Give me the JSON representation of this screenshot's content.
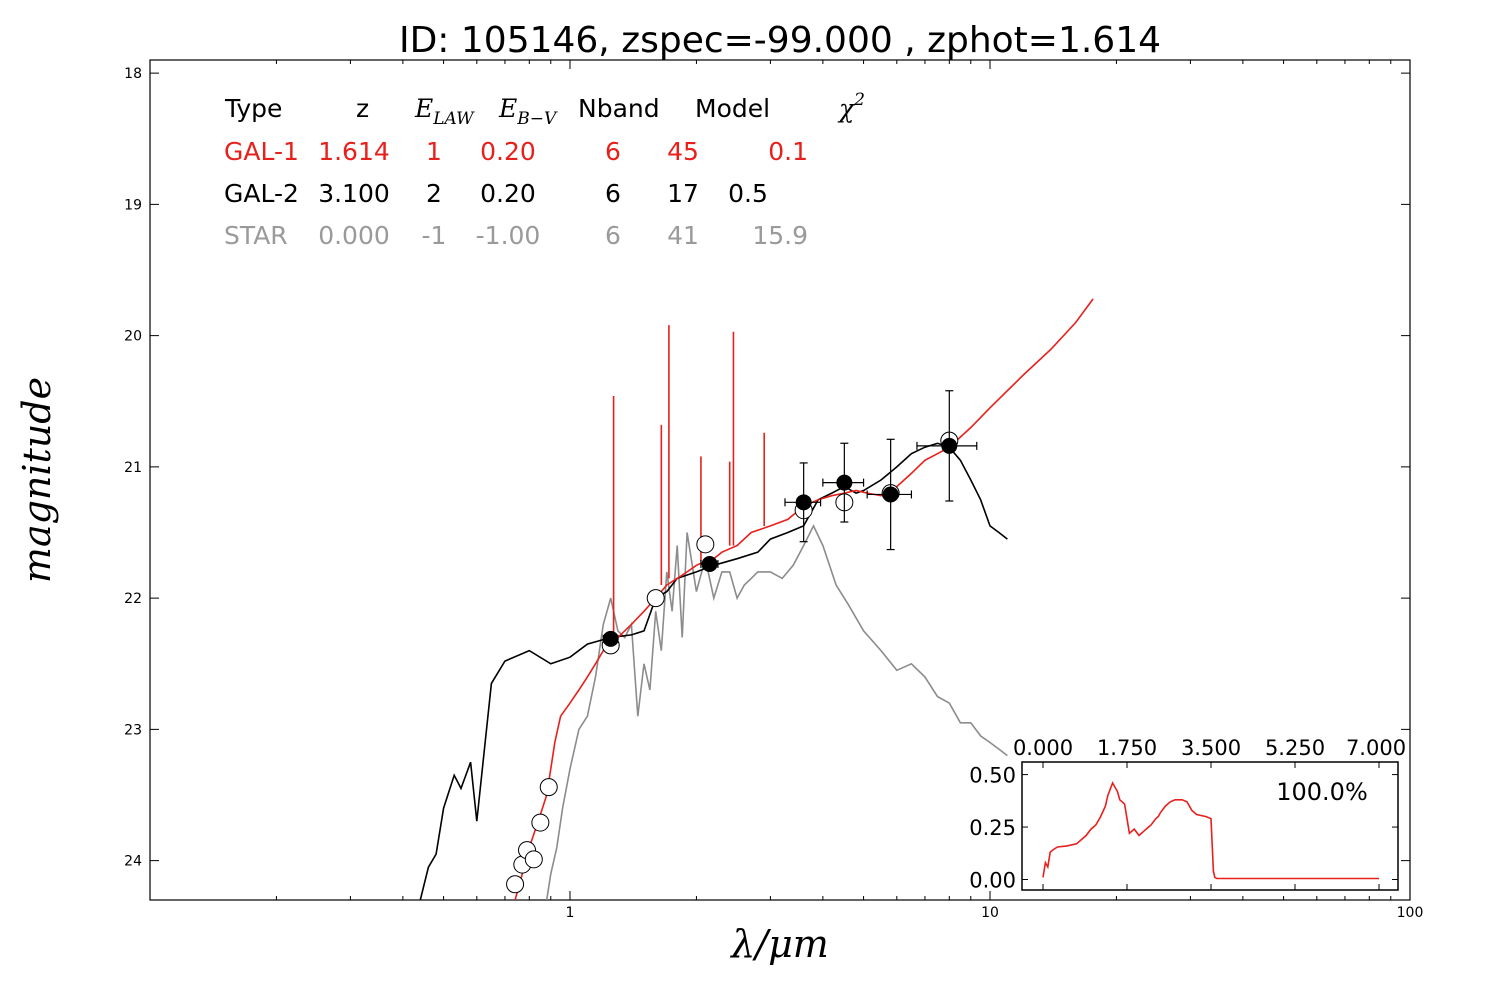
{
  "title": "ID:  105146, zspec=-99.000 , zphot=1.614",
  "colors": {
    "gal1": "#e8201c",
    "gal2": "#000000",
    "star": "#8c8c8c",
    "star_text": "#9a9a9a"
  },
  "table": {
    "headers": {
      "type": "Type",
      "z": "z",
      "elaw_base": "E",
      "elaw_sub": "LAW",
      "ebv_base": "E",
      "ebv_sub": "B−V",
      "nband": "Nband",
      "model": "Model",
      "chi2_base": "χ",
      "chi2_sup": "2"
    },
    "rows": [
      {
        "type": "GAL-1",
        "z": "1.614",
        "elaw": "1",
        "ebv": "0.20",
        "nband": "6",
        "model": "45",
        "chi2": "0.1",
        "color": "#e8201c"
      },
      {
        "type": "GAL-2",
        "z": "3.100",
        "elaw": "2",
        "ebv": "0.20",
        "nband": "6",
        "model": "17",
        "chi2": "0.5",
        "color": "#000000"
      },
      {
        "type": "STAR",
        "z": "0.000",
        "elaw": "-1",
        "ebv": "-1.00",
        "nband": "6",
        "model": "41",
        "chi2": "15.9",
        "color": "#9a9a9a"
      }
    ]
  },
  "chart_data": [
    {
      "type": "line",
      "title": "ID:  105146, zspec=-99.000 , zphot=1.614",
      "xlabel": "λ/μm",
      "ylabel": "magnitude",
      "xscale": "log",
      "xlim": [
        0.1,
        100
      ],
      "ylim": [
        24.3,
        17.9
      ],
      "yaxis_inverted": true,
      "xticks": [
        "1",
        "10",
        "100"
      ],
      "yticks": [
        "18",
        "19",
        "20",
        "21",
        "22",
        "23",
        "24"
      ],
      "grid": false,
      "series": [
        {
          "name": "GAL-1",
          "color": "#e8201c",
          "x": [
            0.74,
            0.77,
            0.8,
            0.83,
            0.86,
            0.88,
            0.9,
            0.92,
            0.95,
            1.0,
            1.05,
            1.1,
            1.15,
            1.2,
            1.25,
            1.3,
            1.35,
            1.4,
            1.5,
            1.6,
            1.7,
            1.8,
            1.9,
            2.0,
            2.1,
            2.2,
            2.3,
            2.5,
            2.7,
            3.0,
            3.3,
            3.6,
            3.9,
            4.2,
            4.5,
            4.8,
            5.1,
            5.5,
            6.0,
            6.5,
            7.0,
            7.5,
            8.0,
            9.0,
            10.0,
            12.0,
            14.0,
            16.0,
            17.6
          ],
          "y": [
            24.3,
            24.1,
            23.9,
            23.75,
            23.6,
            23.5,
            23.3,
            23.1,
            22.9,
            22.8,
            22.7,
            22.6,
            22.5,
            22.4,
            22.35,
            22.3,
            22.25,
            22.2,
            22.1,
            22.0,
            21.9,
            21.85,
            21.8,
            21.75,
            21.72,
            21.7,
            21.65,
            21.6,
            21.5,
            21.45,
            21.4,
            21.3,
            21.25,
            21.22,
            21.2,
            21.18,
            21.2,
            21.22,
            21.15,
            21.05,
            20.95,
            20.9,
            20.85,
            20.7,
            20.55,
            20.3,
            20.1,
            19.9,
            19.72
          ],
          "lines": [
            {
              "x": 1.27,
              "y": 20.46
            },
            {
              "x": 1.65,
              "y": 20.68
            },
            {
              "x": 1.72,
              "y": 19.92
            },
            {
              "x": 2.05,
              "y": 20.92
            },
            {
              "x": 2.4,
              "y": 20.96
            },
            {
              "x": 2.45,
              "y": 19.97
            },
            {
              "x": 2.9,
              "y": 20.74
            }
          ]
        },
        {
          "name": "GAL-2",
          "color": "#000000",
          "x": [
            0.44,
            0.46,
            0.48,
            0.5,
            0.53,
            0.55,
            0.58,
            0.6,
            0.65,
            0.7,
            0.8,
            0.9,
            1.0,
            1.1,
            1.25,
            1.4,
            1.5,
            1.6,
            1.7,
            1.8,
            2.0,
            2.2,
            2.5,
            2.8,
            3.0,
            3.3,
            3.6,
            3.9,
            4.2,
            4.5,
            4.8,
            5.0,
            5.5,
            6.0,
            6.5,
            7.0,
            7.5,
            8.0,
            8.5,
            9.0,
            9.5,
            10.0,
            10.5,
            11.0
          ],
          "y": [
            24.3,
            24.05,
            23.95,
            23.6,
            23.35,
            23.45,
            23.25,
            23.7,
            22.65,
            22.48,
            22.4,
            22.5,
            22.45,
            22.35,
            22.3,
            22.28,
            22.25,
            22.0,
            21.95,
            21.85,
            21.8,
            21.75,
            21.7,
            21.65,
            21.55,
            21.5,
            21.45,
            21.25,
            21.2,
            21.15,
            21.2,
            21.18,
            21.1,
            21.0,
            20.9,
            20.85,
            20.82,
            20.85,
            20.95,
            21.1,
            21.25,
            21.45,
            21.5,
            21.55
          ]
        },
        {
          "name": "STAR",
          "color": "#8c8c8c",
          "x": [
            0.88,
            0.9,
            0.93,
            0.96,
            1.0,
            1.05,
            1.1,
            1.15,
            1.2,
            1.25,
            1.3,
            1.35,
            1.4,
            1.45,
            1.5,
            1.55,
            1.6,
            1.65,
            1.7,
            1.75,
            1.8,
            1.85,
            1.9,
            2.0,
            2.1,
            2.2,
            2.3,
            2.4,
            2.5,
            2.6,
            2.7,
            2.8,
            3.0,
            3.2,
            3.4,
            3.6,
            3.8,
            4.0,
            4.3,
            4.6,
            5.0,
            5.5,
            6.0,
            6.5,
            7.0,
            7.5,
            8.0,
            8.5,
            9.0,
            9.5,
            10.0,
            10.5,
            11.0
          ],
          "y": [
            24.3,
            24.1,
            23.9,
            23.6,
            23.3,
            23.0,
            22.9,
            22.6,
            22.2,
            22.0,
            22.25,
            22.3,
            22.2,
            22.9,
            22.5,
            22.7,
            22.1,
            22.4,
            21.8,
            22.1,
            21.6,
            22.3,
            21.5,
            21.95,
            21.7,
            22.0,
            21.8,
            21.8,
            22.0,
            21.9,
            21.85,
            21.8,
            21.8,
            21.85,
            21.75,
            21.6,
            21.45,
            21.6,
            21.9,
            22.05,
            22.25,
            22.4,
            22.55,
            22.5,
            22.6,
            22.75,
            22.8,
            22.95,
            22.95,
            23.05,
            23.1,
            23.15,
            23.2
          ]
        }
      ],
      "points_observed": [
        {
          "x": 1.25,
          "y": 22.31,
          "xerr_lo": 0.05,
          "xerr_hi": 0.05,
          "yerr": 0.04
        },
        {
          "x": 2.15,
          "y": 21.74,
          "xerr_lo": 0.1,
          "xerr_hi": 0.1,
          "yerr": 0.04
        },
        {
          "x": 3.6,
          "y": 21.27,
          "xerr_lo": 0.35,
          "xerr_hi": 0.35,
          "yerr": 0.3
        },
        {
          "x": 4.5,
          "y": 21.12,
          "xerr_lo": 0.5,
          "xerr_hi": 0.5,
          "yerr": 0.3
        },
        {
          "x": 5.8,
          "y": 21.21,
          "xerr_lo": 0.7,
          "xerr_hi": 0.7,
          "yerr": 0.42
        },
        {
          "x": 8.0,
          "y": 20.84,
          "xerr_lo": 1.3,
          "xerr_hi": 1.3,
          "yerr": 0.42
        }
      ],
      "points_model": [
        {
          "x": 0.74,
          "y": 24.18
        },
        {
          "x": 0.77,
          "y": 24.03
        },
        {
          "x": 0.79,
          "y": 23.92
        },
        {
          "x": 0.82,
          "y": 23.99
        },
        {
          "x": 0.85,
          "y": 23.71
        },
        {
          "x": 0.89,
          "y": 23.44
        },
        {
          "x": 1.25,
          "y": 22.36
        },
        {
          "x": 1.6,
          "y": 22.0
        },
        {
          "x": 2.1,
          "y": 21.59
        },
        {
          "x": 3.6,
          "y": 21.33
        },
        {
          "x": 4.5,
          "y": 21.27
        },
        {
          "x": 5.8,
          "y": 21.2
        },
        {
          "x": 8.0,
          "y": 20.8
        }
      ]
    },
    {
      "type": "line",
      "xlim": [
        0.0,
        7.0
      ],
      "ylim": [
        -0.05,
        0.56
      ],
      "xticks": [
        "0.000",
        "1.750",
        "3.500",
        "5.250",
        "7.000"
      ],
      "yticks": [
        "0.50",
        "0.25",
        "0.00"
      ],
      "annotation": "100.0%",
      "series": [
        {
          "color": "#e8201c",
          "x": [
            0.0,
            0.05,
            0.1,
            0.15,
            0.2,
            0.3,
            0.5,
            0.7,
            0.9,
            1.0,
            1.1,
            1.2,
            1.3,
            1.35,
            1.45,
            1.55,
            1.6,
            1.7,
            1.8,
            1.9,
            2.0,
            2.1,
            2.2,
            2.25,
            2.35,
            2.4,
            2.45,
            2.55,
            2.65,
            2.75,
            2.9,
            3.0,
            3.1,
            3.2,
            3.4,
            3.5,
            3.55,
            3.58,
            3.62,
            3.7,
            4.0,
            5.0,
            6.0,
            7.0
          ],
          "y": [
            0.01,
            0.08,
            0.06,
            0.13,
            0.14,
            0.155,
            0.16,
            0.17,
            0.21,
            0.24,
            0.26,
            0.3,
            0.35,
            0.4,
            0.46,
            0.42,
            0.38,
            0.36,
            0.22,
            0.24,
            0.21,
            0.23,
            0.25,
            0.26,
            0.29,
            0.3,
            0.32,
            0.35,
            0.37,
            0.38,
            0.38,
            0.37,
            0.33,
            0.31,
            0.3,
            0.29,
            0.04,
            0.01,
            0.005,
            0.005,
            0.005,
            0.005,
            0.005,
            0.005
          ]
        }
      ]
    }
  ]
}
